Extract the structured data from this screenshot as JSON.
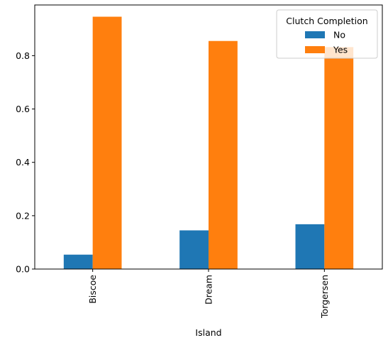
{
  "chart_data": {
    "type": "bar",
    "categories": [
      "Biscoe",
      "Dream",
      "Torgersen"
    ],
    "series": [
      {
        "name": "No",
        "values": [
          0.054,
          0.145,
          0.168
        ],
        "color": "#1f77b4"
      },
      {
        "name": "Yes",
        "values": [
          0.946,
          0.855,
          0.832
        ],
        "color": "#ff7f0e"
      }
    ],
    "xlabel": "Island",
    "ylabel": "",
    "ylim": [
      0,
      0.99
    ],
    "yticks": [
      "0.0",
      "0.2",
      "0.4",
      "0.6",
      "0.8"
    ],
    "ytick_values": [
      0,
      0.2,
      0.4,
      0.6,
      0.8
    ],
    "legend": {
      "title": "Clutch Completion",
      "placement": "top-right"
    },
    "grid": false
  }
}
